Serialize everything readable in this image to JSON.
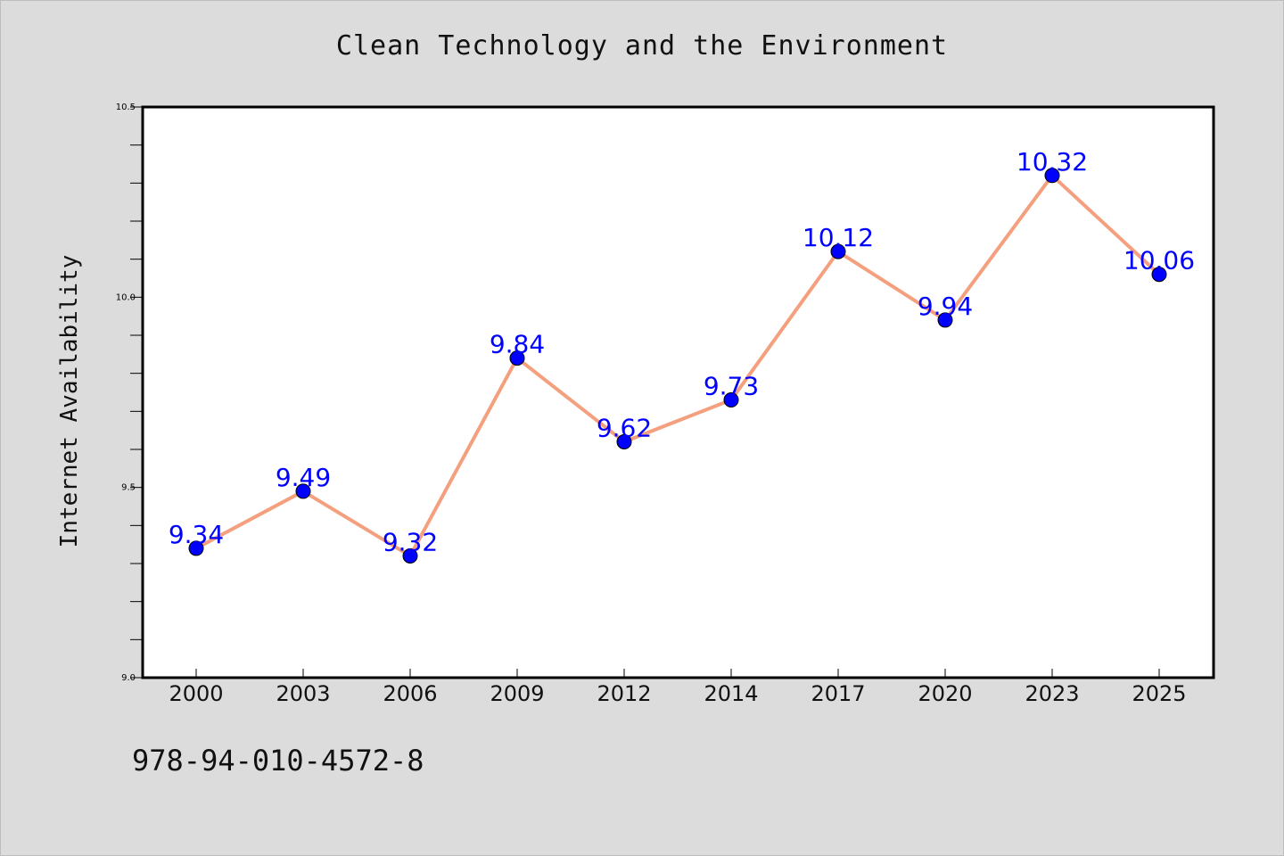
{
  "chart_data": {
    "type": "line",
    "title": "Clean Technology and the Environment",
    "xlabel": "",
    "ylabel": "Internet Availability",
    "categories": [
      "2000",
      "2003",
      "2006",
      "2009",
      "2012",
      "2014",
      "2017",
      "2020",
      "2023",
      "2025"
    ],
    "series": [
      {
        "values": [
          9.34,
          9.49,
          9.32,
          9.84,
          9.62,
          9.73,
          10.12,
          9.94,
          10.32,
          10.06
        ],
        "line_color": "#f4a07f",
        "marker_color": "#0000ff"
      }
    ],
    "data_labels": [
      "9.34",
      "9.49",
      "9.32",
      "9.84",
      "9.62",
      "9.73",
      "10.12",
      "9.94",
      "10.32",
      "10.06"
    ],
    "ylim": [
      9.0,
      10.5
    ],
    "y_tick_labels": [
      "9.0",
      "9.5",
      "10.0",
      "10.5"
    ],
    "grid": false,
    "label_color": "#0000ff"
  },
  "footer": {
    "isbn": "978-94-010-4572-8"
  }
}
